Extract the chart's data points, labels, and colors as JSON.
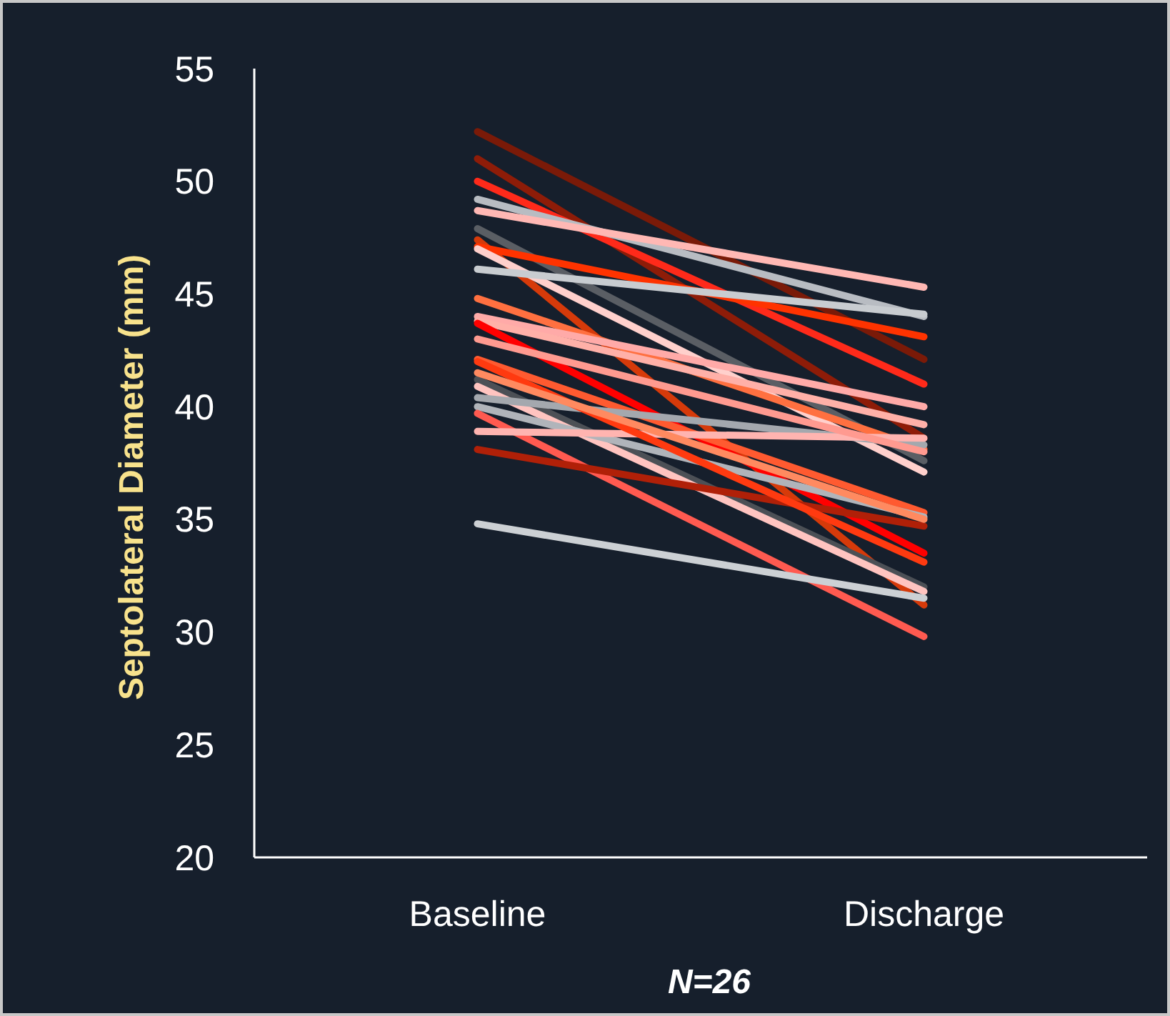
{
  "chart_data": {
    "type": "line",
    "ylabel": "Septolateral Diameter (mm)",
    "xlabel": "N=26",
    "categories": [
      "Baseline",
      "Discharge"
    ],
    "ylim": [
      20,
      55
    ],
    "yticks": [
      20,
      25,
      30,
      35,
      40,
      45,
      50,
      55
    ],
    "grid": false,
    "marker": "none",
    "line_style": "solid",
    "series": [
      {
        "color": "#7a1a08",
        "values": [
          52.2,
          42.1
        ]
      },
      {
        "color": "#8e1c08",
        "values": [
          51.0,
          38.6
        ]
      },
      {
        "color": "#ff2a1a",
        "values": [
          50.0,
          41.0
        ]
      },
      {
        "color": "#b8bcc2",
        "values": [
          49.2,
          44.0
        ]
      },
      {
        "color": "#ffb8b4",
        "values": [
          48.7,
          45.3
        ]
      },
      {
        "color": "#5a5e64",
        "values": [
          47.9,
          37.6
        ]
      },
      {
        "color": "#d63a0a",
        "values": [
          47.4,
          31.2
        ]
      },
      {
        "color": "#ff3300",
        "values": [
          47.1,
          43.1
        ]
      },
      {
        "color": "#ffd0cc",
        "values": [
          47.0,
          37.1
        ]
      },
      {
        "color": "#c8ccd0",
        "values": [
          46.1,
          44.1
        ]
      },
      {
        "color": "#ff7040",
        "values": [
          44.8,
          38.1
        ]
      },
      {
        "color": "#ffaaa8",
        "values": [
          44.0,
          40.0
        ]
      },
      {
        "color": "#ffb0a8",
        "values": [
          43.8,
          39.2
        ]
      },
      {
        "color": "#ff0000",
        "values": [
          43.7,
          33.5
        ]
      },
      {
        "color": "#ff5a30",
        "values": [
          42.1,
          35.3
        ]
      },
      {
        "color": "#4c5056",
        "values": [
          41.2,
          32.0
        ]
      },
      {
        "color": "#ffc4c0",
        "values": [
          40.9,
          31.8
        ]
      },
      {
        "color": "#a4a8ae",
        "values": [
          40.4,
          38.3
        ]
      },
      {
        "color": "#b0b4ba",
        "values": [
          40.0,
          35.1
        ]
      },
      {
        "color": "#ff5a50",
        "values": [
          39.7,
          29.8
        ]
      },
      {
        "color": "#ffb4b0",
        "values": [
          38.9,
          38.6
        ]
      },
      {
        "color": "#b02008",
        "values": [
          38.1,
          34.7
        ]
      },
      {
        "color": "#ccd0d4",
        "values": [
          34.8,
          31.5
        ]
      },
      {
        "color": "#ff3a10",
        "values": [
          42.0,
          33.1
        ]
      },
      {
        "color": "#ff8a60",
        "values": [
          41.5,
          35.0
        ]
      },
      {
        "color": "#ff9a90",
        "values": [
          43.0,
          38.0
        ]
      }
    ]
  }
}
